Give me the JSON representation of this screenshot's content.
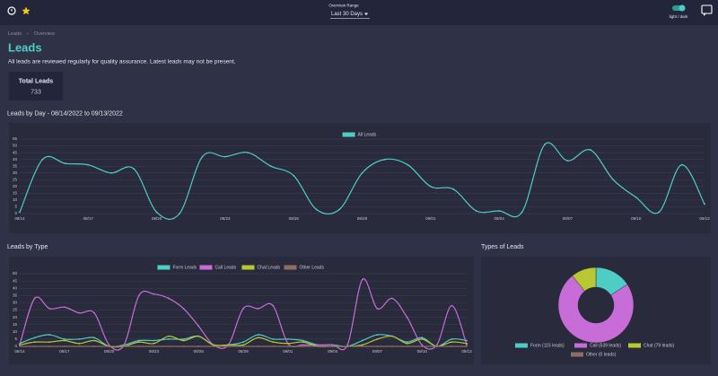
{
  "header": {
    "range_label": "Overview Range",
    "range_value": "Last 30 Days",
    "theme_label": "light / dark"
  },
  "breadcrumb": [
    "Leads",
    "Overview"
  ],
  "page": {
    "title": "Leads",
    "subtitle": "All leads are reviewed regularly for quality assurance. Latest leads may not be present."
  },
  "card": {
    "label": "Total Leads",
    "value": 733
  },
  "chart_data": [
    {
      "type": "line",
      "title": "Leads by Day - 08/14/2022 to 09/13/2022",
      "categories": [
        "08/14",
        null,
        null,
        "08/17",
        null,
        null,
        "08/20",
        null,
        null,
        "08/23",
        null,
        null,
        "08/26",
        null,
        null,
        "08/29",
        null,
        null,
        "09/01",
        null,
        null,
        "09/04",
        null,
        null,
        "09/07",
        null,
        null,
        "09/10",
        null,
        null,
        "09/13"
      ],
      "series": [
        {
          "name": "All Leads",
          "color": "#4ecdc4",
          "values": [
            1,
            40,
            37,
            36,
            30,
            33,
            1,
            0,
            42,
            42,
            45,
            35,
            28,
            3,
            3,
            30,
            40,
            36,
            20,
            18,
            2,
            2,
            1,
            51,
            39,
            47,
            25,
            12,
            1,
            36,
            7
          ]
        }
      ],
      "ylim": [
        0,
        55
      ],
      "yticks": [
        0,
        5,
        10,
        15,
        20,
        25,
        30,
        35,
        40,
        45,
        50,
        55
      ],
      "grid": true
    },
    {
      "type": "line",
      "title": "Leads by Type",
      "categories": [
        "08/14",
        null,
        null,
        "08/17",
        null,
        null,
        "08/20",
        null,
        null,
        "08/23",
        null,
        null,
        "08/26",
        null,
        null,
        "08/29",
        null,
        null,
        "09/01",
        null,
        null,
        "09/04",
        null,
        null,
        "09/07",
        null,
        null,
        "09/10",
        null,
        null,
        "09/13"
      ],
      "series": [
        {
          "name": "Form Leads",
          "color": "#4ecdc4",
          "values": [
            2,
            6,
            8,
            5,
            5,
            6,
            0,
            1,
            4,
            4,
            5,
            5,
            7,
            1,
            1,
            3,
            8,
            5,
            5,
            4,
            1,
            1,
            0,
            4,
            8,
            7,
            3,
            6,
            0,
            5,
            4
          ]
        },
        {
          "name": "Call Leads",
          "color": "#c86dd7",
          "values": [
            1,
            33,
            26,
            27,
            23,
            23,
            1,
            1,
            35,
            36,
            33,
            26,
            14,
            1,
            1,
            26,
            26,
            28,
            2,
            1,
            1,
            1,
            1,
            46,
            26,
            33,
            20,
            1,
            1,
            28,
            1
          ]
        },
        {
          "name": "Chat Leads",
          "color": "#b8c832",
          "values": [
            1,
            3,
            3,
            4,
            2,
            4,
            0,
            0,
            3,
            2,
            7,
            4,
            7,
            1,
            1,
            1,
            6,
            3,
            2,
            3,
            0,
            0,
            0,
            1,
            5,
            7,
            2,
            5,
            0,
            3,
            2
          ]
        },
        {
          "name": "Other Leads",
          "color": "#8d6e63",
          "values": [
            0,
            0,
            0,
            0,
            0,
            0,
            0,
            0,
            0,
            0,
            0,
            0,
            0,
            0,
            0,
            0,
            0,
            0,
            0,
            0,
            0,
            0,
            0,
            0,
            0,
            0,
            0,
            0,
            0,
            0,
            0
          ]
        }
      ],
      "ylim": [
        0,
        50
      ],
      "yticks": [
        0,
        5,
        10,
        15,
        20,
        25,
        30,
        35,
        40,
        45,
        50
      ],
      "grid": true
    },
    {
      "type": "donut",
      "title": "Types of Leads",
      "categories": [
        "Form (115 leads)",
        "Call (539 leads)",
        "Chat (79 leads)",
        "Other (0 leads)"
      ],
      "values": [
        115,
        539,
        79,
        0
      ],
      "colors": [
        "#4ecdc4",
        "#c86dd7",
        "#b8c832",
        "#8d6e63"
      ]
    }
  ]
}
